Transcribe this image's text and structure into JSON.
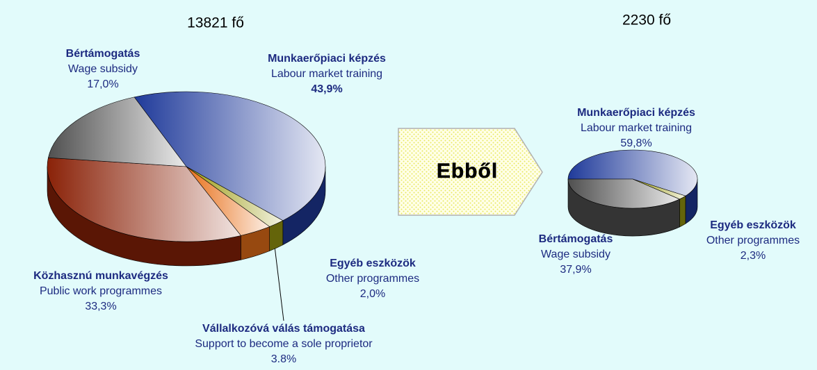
{
  "chart_data": [
    {
      "type": "pie",
      "title": "13821 fő",
      "categories": [
        "Munkaerőpiaci képzés",
        "Egyéb eszközök",
        "Vállalkozóvá válás támogatása",
        "Közhasznú munkavégzés",
        "Bértámogatás"
      ],
      "categories_en": [
        "Labour market training",
        "Other programmes",
        "Support to become a sole proprietor",
        "Public work programmes",
        "Wage subsidy"
      ],
      "values": [
        43.9,
        2.0,
        3.8,
        33.3,
        17.0
      ],
      "value_labels": [
        "43,9%",
        "2,0%",
        "3.8%",
        "33,3%",
        "17,0%"
      ],
      "colors": [
        "#1f3a9a",
        "#9a9a10",
        "#e8701a",
        "#8a2208",
        "#505050"
      ]
    },
    {
      "type": "pie",
      "title": "2230 fő",
      "categories": [
        "Munkaerőpiaci képzés",
        "Egyéb eszközök",
        "Bértámogatás"
      ],
      "categories_en": [
        "Labour market training",
        "Other programmes",
        "Wage subsidy"
      ],
      "values": [
        59.8,
        2.3,
        37.9
      ],
      "value_labels": [
        "59,8%",
        "2,3%",
        "37,9%"
      ],
      "colors": [
        "#1f3a9a",
        "#9a9a10",
        "#505050"
      ]
    }
  ],
  "annotation": "Ebből"
}
